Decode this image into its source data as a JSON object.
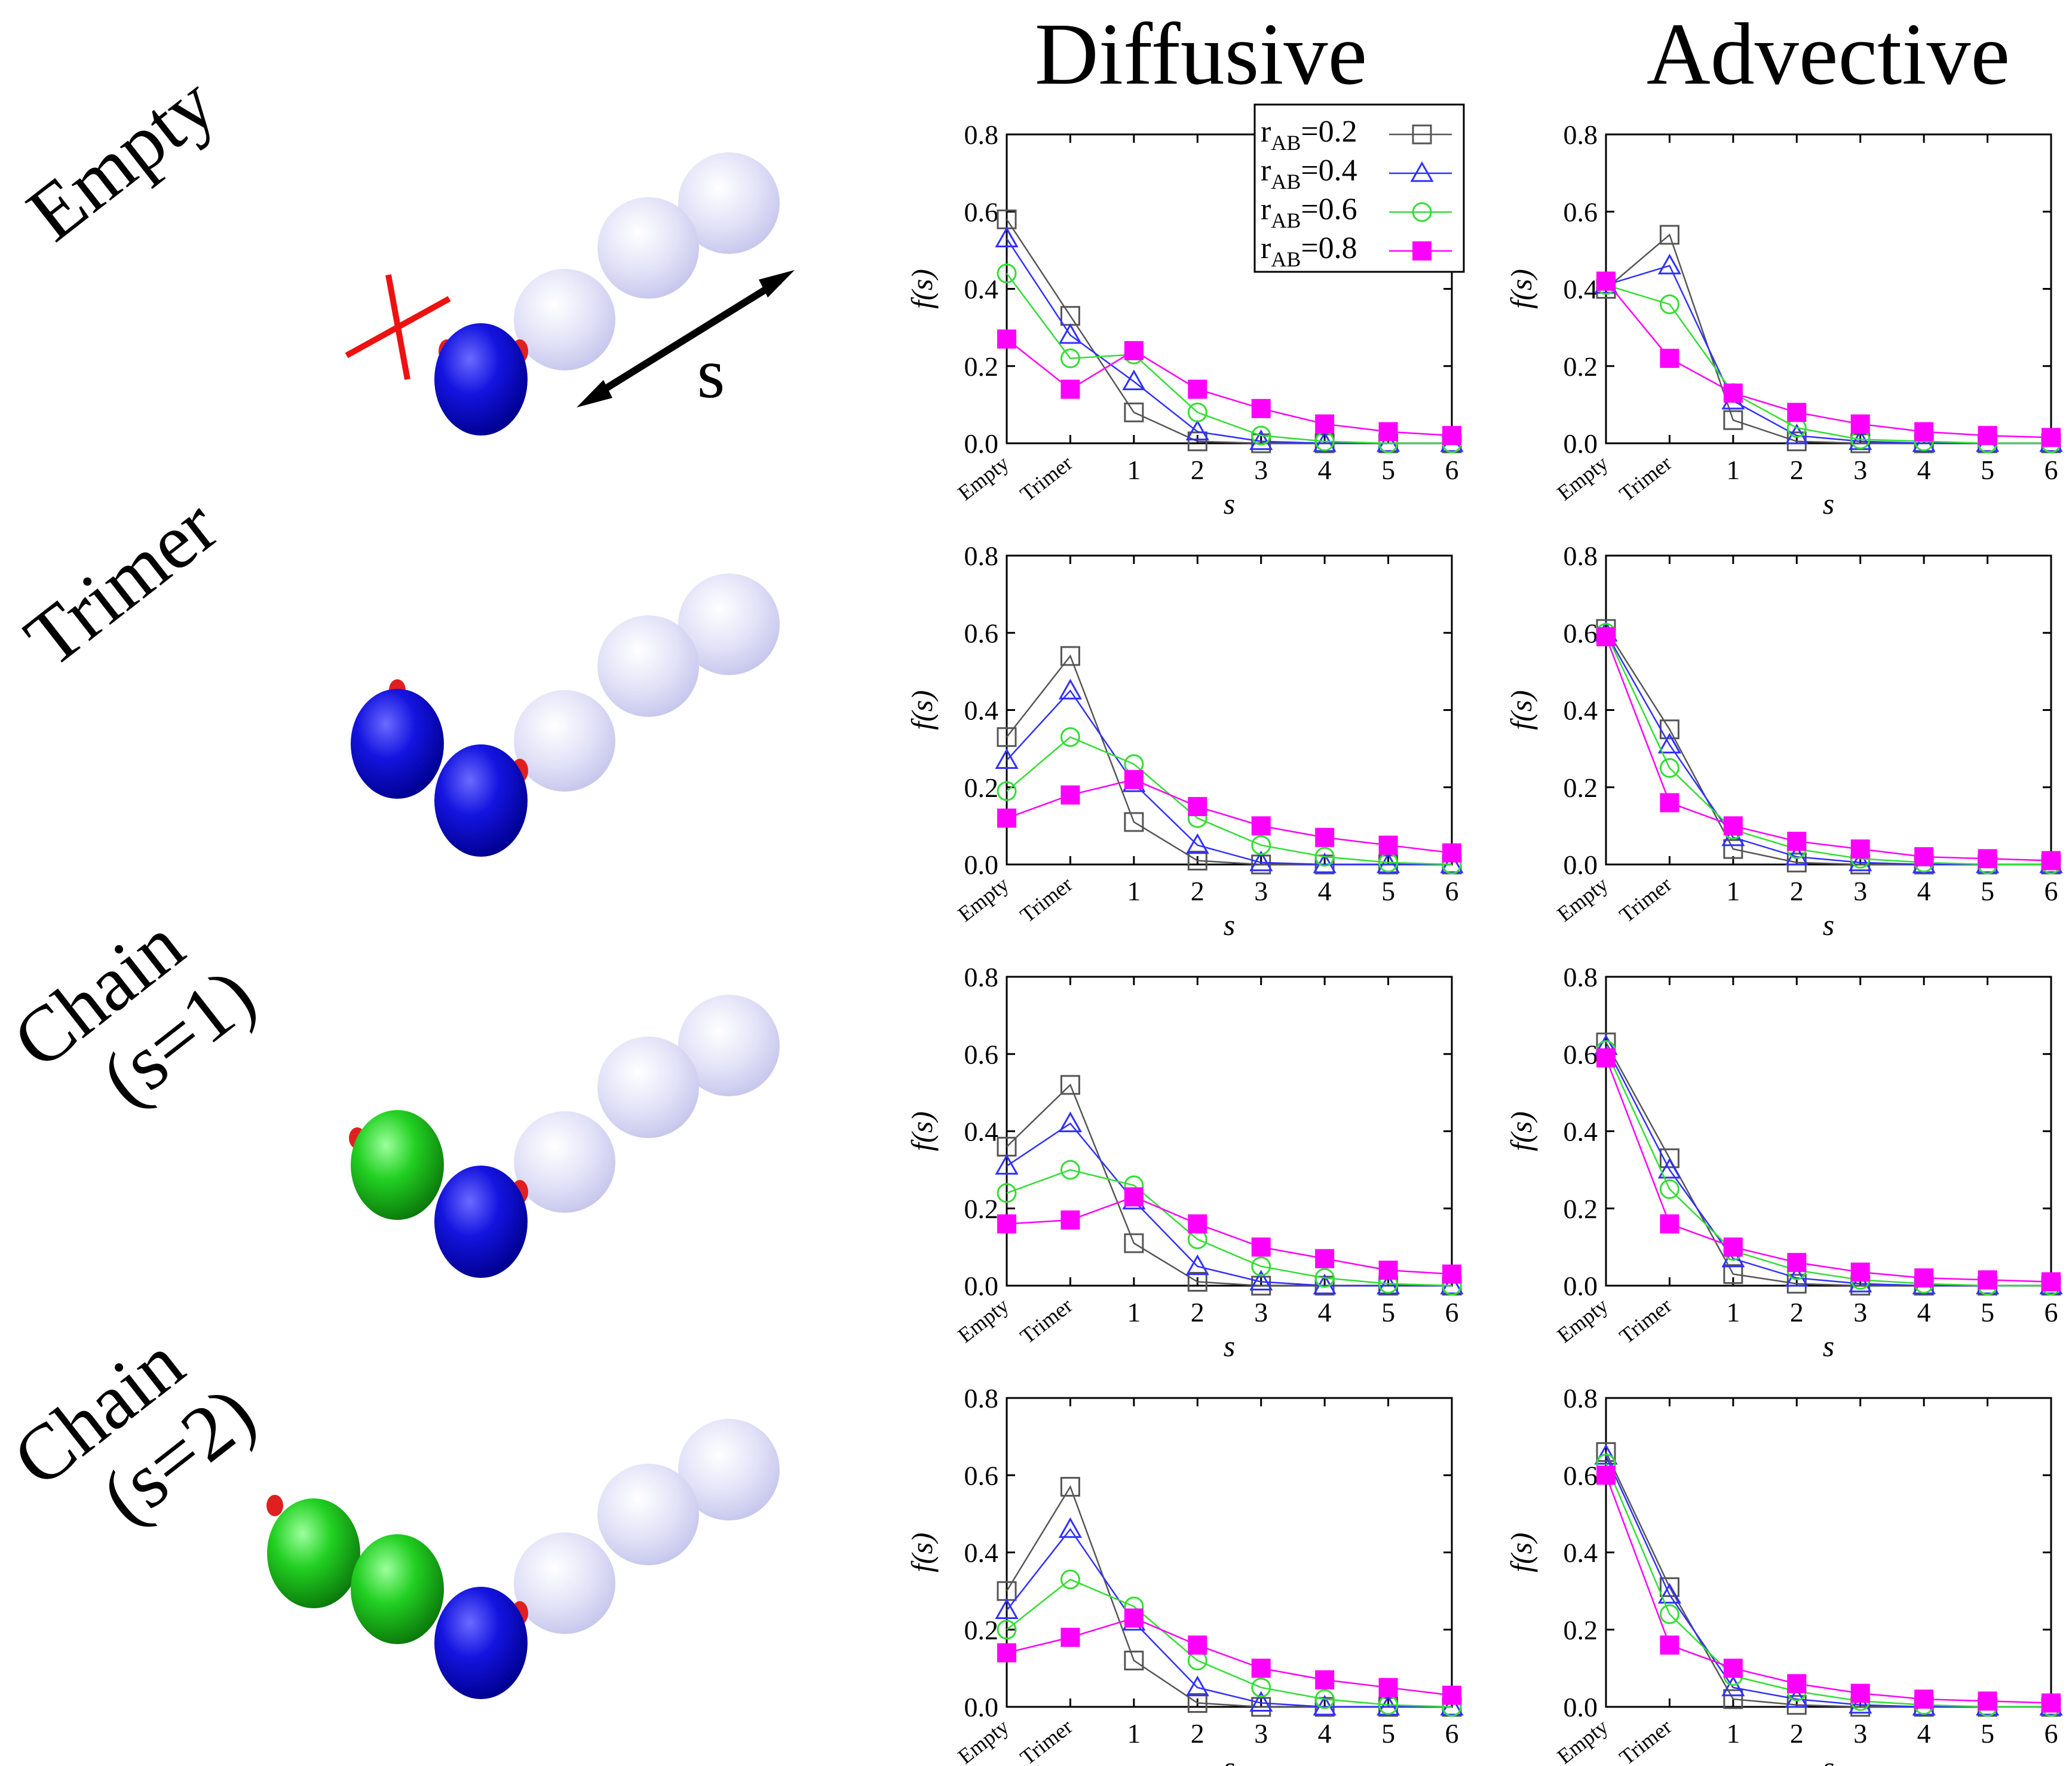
{
  "columns": {
    "diffusive": "Diffusive",
    "advective": "Advective"
  },
  "rows": [
    {
      "label_lines": [
        "Empty"
      ]
    },
    {
      "label_lines": [
        "Trimer"
      ]
    },
    {
      "label_lines": [
        "Chain",
        "(s=1)"
      ]
    },
    {
      "label_lines": [
        "Chain",
        "(s=2)"
      ]
    }
  ],
  "schematic": {
    "s_label": "s"
  },
  "colors": {
    "r02": "#555555",
    "r04": "#3030ff",
    "r06": "#33dd33",
    "r08": "#ff00ff",
    "blue_bead": "#1010d8",
    "green_bead": "#22cc22",
    "ghost_bead": "#d8d8f4",
    "cross": "#ee1111"
  },
  "chart_data": [
    {
      "type": "line",
      "title": "Diffusive — Empty",
      "xlabel": "s",
      "ylabel": "f(s)",
      "categories": [
        "Empty",
        "Trimer",
        "1",
        "2",
        "3",
        "4",
        "5",
        "6"
      ],
      "ylim": [
        0,
        0.8
      ],
      "yticks": [
        "0.0",
        "0.2",
        "0.4",
        "0.6",
        "0.8"
      ],
      "series": [
        {
          "name": "r_AB=0.2",
          "marker": "open-square",
          "values": [
            0.58,
            0.33,
            0.08,
            0.005,
            0.0,
            0.0,
            0.0,
            0.0
          ]
        },
        {
          "name": "r_AB=0.4",
          "marker": "open-triangle",
          "values": [
            0.53,
            0.28,
            0.16,
            0.03,
            0.005,
            0.0,
            0.0,
            0.0
          ]
        },
        {
          "name": "r_AB=0.6",
          "marker": "open-circle",
          "values": [
            0.44,
            0.22,
            0.23,
            0.08,
            0.02,
            0.005,
            0.0,
            0.0
          ]
        },
        {
          "name": "r_AB=0.8",
          "marker": "filled-square",
          "values": [
            0.27,
            0.14,
            0.24,
            0.14,
            0.09,
            0.05,
            0.03,
            0.02
          ]
        }
      ],
      "legend": {
        "position": "top-right",
        "entries": [
          {
            "base": "r",
            "sub": "AB",
            "value": "=0.2"
          },
          {
            "base": "r",
            "sub": "AB",
            "value": "=0.4"
          },
          {
            "base": "r",
            "sub": "AB",
            "value": "=0.6"
          },
          {
            "base": "r",
            "sub": "AB",
            "value": "=0.8"
          }
        ]
      }
    },
    {
      "type": "line",
      "title": "Advective — Empty",
      "xlabel": "s",
      "ylabel": "f(s)",
      "categories": [
        "Empty",
        "Trimer",
        "1",
        "2",
        "3",
        "4",
        "5",
        "6"
      ],
      "ylim": [
        0,
        0.8
      ],
      "yticks": [
        "0.0",
        "0.2",
        "0.4",
        "0.6",
        "0.8"
      ],
      "series": [
        {
          "name": "r_AB=0.2",
          "marker": "open-square",
          "values": [
            0.4,
            0.54,
            0.06,
            0.005,
            0.0,
            0.0,
            0.0,
            0.0
          ]
        },
        {
          "name": "r_AB=0.4",
          "marker": "open-triangle",
          "values": [
            0.41,
            0.46,
            0.11,
            0.02,
            0.005,
            0.0,
            0.0,
            0.0
          ]
        },
        {
          "name": "r_AB=0.6",
          "marker": "open-circle",
          "values": [
            0.41,
            0.36,
            0.13,
            0.04,
            0.01,
            0.005,
            0.0,
            0.0
          ]
        },
        {
          "name": "r_AB=0.8",
          "marker": "filled-square",
          "values": [
            0.42,
            0.22,
            0.13,
            0.08,
            0.05,
            0.03,
            0.02,
            0.015
          ]
        }
      ]
    },
    {
      "type": "line",
      "title": "Diffusive — Trimer",
      "xlabel": "s",
      "ylabel": "f(s)",
      "categories": [
        "Empty",
        "Trimer",
        "1",
        "2",
        "3",
        "4",
        "5",
        "6"
      ],
      "ylim": [
        0,
        0.8
      ],
      "yticks": [
        "0.0",
        "0.2",
        "0.4",
        "0.6",
        "0.8"
      ],
      "series": [
        {
          "name": "r_AB=0.2",
          "marker": "open-square",
          "values": [
            0.33,
            0.54,
            0.11,
            0.01,
            0.0,
            0.0,
            0.0,
            0.0
          ]
        },
        {
          "name": "r_AB=0.4",
          "marker": "open-triangle",
          "values": [
            0.27,
            0.45,
            0.21,
            0.05,
            0.005,
            0.0,
            0.0,
            0.0
          ]
        },
        {
          "name": "r_AB=0.6",
          "marker": "open-circle",
          "values": [
            0.19,
            0.33,
            0.26,
            0.12,
            0.05,
            0.02,
            0.005,
            0.0
          ]
        },
        {
          "name": "r_AB=0.8",
          "marker": "filled-square",
          "values": [
            0.12,
            0.18,
            0.22,
            0.15,
            0.1,
            0.07,
            0.05,
            0.03
          ]
        }
      ]
    },
    {
      "type": "line",
      "title": "Advective — Trimer",
      "xlabel": "s",
      "ylabel": "f(s)",
      "categories": [
        "Empty",
        "Trimer",
        "1",
        "2",
        "3",
        "4",
        "5",
        "6"
      ],
      "ylim": [
        0,
        0.8
      ],
      "yticks": [
        "0.0",
        "0.2",
        "0.4",
        "0.6",
        "0.8"
      ],
      "series": [
        {
          "name": "r_AB=0.2",
          "marker": "open-square",
          "values": [
            0.61,
            0.35,
            0.04,
            0.005,
            0.0,
            0.0,
            0.0,
            0.0
          ]
        },
        {
          "name": "r_AB=0.4",
          "marker": "open-triangle",
          "values": [
            0.6,
            0.31,
            0.07,
            0.02,
            0.005,
            0.0,
            0.0,
            0.0
          ]
        },
        {
          "name": "r_AB=0.6",
          "marker": "open-circle",
          "values": [
            0.6,
            0.25,
            0.09,
            0.04,
            0.015,
            0.005,
            0.0,
            0.0
          ]
        },
        {
          "name": "r_AB=0.8",
          "marker": "filled-square",
          "values": [
            0.59,
            0.16,
            0.1,
            0.06,
            0.04,
            0.02,
            0.015,
            0.01
          ]
        }
      ]
    },
    {
      "type": "line",
      "title": "Diffusive — Chain (s=1)",
      "xlabel": "s",
      "ylabel": "f(s)",
      "categories": [
        "Empty",
        "Trimer",
        "1",
        "2",
        "3",
        "4",
        "5",
        "6"
      ],
      "ylim": [
        0,
        0.8
      ],
      "yticks": [
        "0.0",
        "0.2",
        "0.4",
        "0.6",
        "0.8"
      ],
      "series": [
        {
          "name": "r_AB=0.2",
          "marker": "open-square",
          "values": [
            0.36,
            0.52,
            0.11,
            0.01,
            0.0,
            0.0,
            0.0,
            0.0
          ]
        },
        {
          "name": "r_AB=0.4",
          "marker": "open-triangle",
          "values": [
            0.31,
            0.42,
            0.22,
            0.05,
            0.01,
            0.0,
            0.0,
            0.0
          ]
        },
        {
          "name": "r_AB=0.6",
          "marker": "open-circle",
          "values": [
            0.24,
            0.3,
            0.26,
            0.12,
            0.05,
            0.02,
            0.005,
            0.0
          ]
        },
        {
          "name": "r_AB=0.8",
          "marker": "filled-square",
          "values": [
            0.16,
            0.17,
            0.23,
            0.16,
            0.1,
            0.07,
            0.04,
            0.03
          ]
        }
      ]
    },
    {
      "type": "line",
      "title": "Advective — Chain (s=1)",
      "xlabel": "s",
      "ylabel": "f(s)",
      "categories": [
        "Empty",
        "Trimer",
        "1",
        "2",
        "3",
        "4",
        "5",
        "6"
      ],
      "ylim": [
        0,
        0.8
      ],
      "yticks": [
        "0.0",
        "0.2",
        "0.4",
        "0.6",
        "0.8"
      ],
      "series": [
        {
          "name": "r_AB=0.2",
          "marker": "open-square",
          "values": [
            0.63,
            0.33,
            0.03,
            0.005,
            0.0,
            0.0,
            0.0,
            0.0
          ]
        },
        {
          "name": "r_AB=0.4",
          "marker": "open-triangle",
          "values": [
            0.62,
            0.3,
            0.07,
            0.02,
            0.005,
            0.0,
            0.0,
            0.0
          ]
        },
        {
          "name": "r_AB=0.6",
          "marker": "open-circle",
          "values": [
            0.61,
            0.25,
            0.09,
            0.04,
            0.015,
            0.005,
            0.0,
            0.0
          ]
        },
        {
          "name": "r_AB=0.8",
          "marker": "filled-square",
          "values": [
            0.59,
            0.16,
            0.1,
            0.06,
            0.035,
            0.02,
            0.015,
            0.01
          ]
        }
      ]
    },
    {
      "type": "line",
      "title": "Diffusive — Chain (s=2)",
      "xlabel": "s",
      "ylabel": "f(s)",
      "categories": [
        "Empty",
        "Trimer",
        "1",
        "2",
        "3",
        "4",
        "5",
        "6"
      ],
      "ylim": [
        0,
        0.8
      ],
      "yticks": [
        "0.0",
        "0.2",
        "0.4",
        "0.6",
        "0.8"
      ],
      "series": [
        {
          "name": "r_AB=0.2",
          "marker": "open-square",
          "values": [
            0.3,
            0.57,
            0.12,
            0.01,
            0.0,
            0.0,
            0.0,
            0.0
          ]
        },
        {
          "name": "r_AB=0.4",
          "marker": "open-triangle",
          "values": [
            0.25,
            0.46,
            0.22,
            0.05,
            0.01,
            0.0,
            0.0,
            0.0
          ]
        },
        {
          "name": "r_AB=0.6",
          "marker": "open-circle",
          "values": [
            0.2,
            0.33,
            0.26,
            0.12,
            0.05,
            0.02,
            0.005,
            0.0
          ]
        },
        {
          "name": "r_AB=0.8",
          "marker": "filled-square",
          "values": [
            0.14,
            0.18,
            0.23,
            0.16,
            0.1,
            0.07,
            0.05,
            0.03
          ]
        }
      ]
    },
    {
      "type": "line",
      "title": "Advective — Chain (s=2)",
      "xlabel": "s",
      "ylabel": "f(s)",
      "categories": [
        "Empty",
        "Trimer",
        "1",
        "2",
        "3",
        "4",
        "5",
        "6"
      ],
      "ylim": [
        0,
        0.8
      ],
      "yticks": [
        "0.0",
        "0.2",
        "0.4",
        "0.6",
        "0.8"
      ],
      "series": [
        {
          "name": "r_AB=0.2",
          "marker": "open-square",
          "values": [
            0.66,
            0.31,
            0.02,
            0.005,
            0.0,
            0.0,
            0.0,
            0.0
          ]
        },
        {
          "name": "r_AB=0.4",
          "marker": "open-triangle",
          "values": [
            0.65,
            0.29,
            0.05,
            0.02,
            0.005,
            0.0,
            0.0,
            0.0
          ]
        },
        {
          "name": "r_AB=0.6",
          "marker": "open-circle",
          "values": [
            0.63,
            0.24,
            0.08,
            0.04,
            0.015,
            0.005,
            0.0,
            0.0
          ]
        },
        {
          "name": "r_AB=0.8",
          "marker": "filled-square",
          "values": [
            0.6,
            0.16,
            0.1,
            0.06,
            0.035,
            0.02,
            0.015,
            0.01
          ]
        }
      ]
    }
  ]
}
